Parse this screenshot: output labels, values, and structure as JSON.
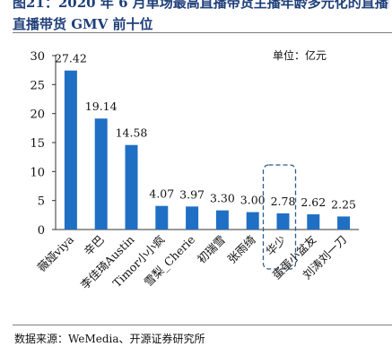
{
  "title": {
    "line1": "图21：2020 年 6 月单场最高直播带货主播年龄多元化的直播间",
    "line2": "直播带货 GMV 前十位"
  },
  "source": "数据来源：WeMedia、开源证券研究所",
  "colors": {
    "bar": "#1f6fc4",
    "title": "#1f3f7a",
    "highlight": "#2f5b8c"
  },
  "chart_data": {
    "type": "bar",
    "title": "",
    "unit_label": "单位：亿元",
    "categories": [
      "薇娅viya",
      "辛巴",
      "李佳琦Austin",
      "Timor小小疯",
      "雪梨_Cherie",
      "初瑞雪",
      "张雨绮",
      "华少",
      "蛋蛋小盆友",
      "刘涛刘一刀"
    ],
    "values": [
      27.42,
      19.14,
      14.58,
      4.07,
      3.97,
      3.3,
      3.0,
      2.78,
      2.62,
      2.25
    ],
    "value_labels": [
      "27.42",
      "19.14",
      "14.58",
      "4.07",
      "3.97",
      "3.30",
      "3.00",
      "2.78",
      "2.62",
      "2.25"
    ],
    "yticks": [
      "0",
      "5",
      "10",
      "15",
      "20",
      "25",
      "30"
    ],
    "ylim": [
      0,
      30
    ],
    "highlighted_category": "华少",
    "grid": false
  }
}
